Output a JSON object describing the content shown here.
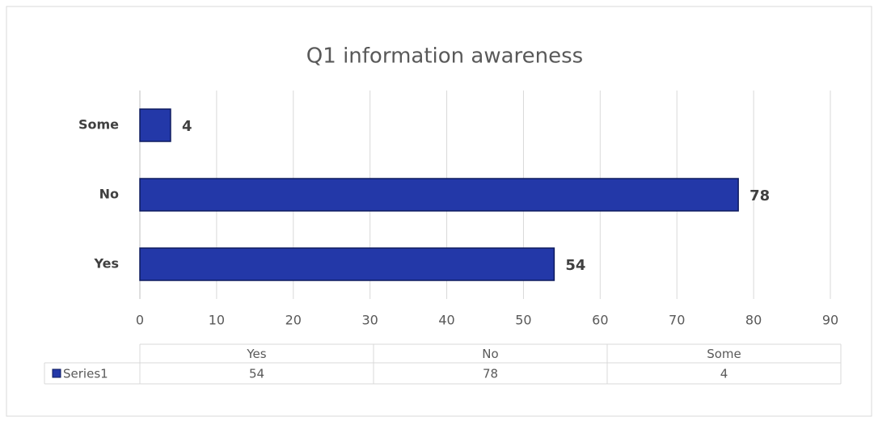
{
  "chart_data": {
    "type": "bar",
    "orientation": "horizontal",
    "title": "Q1 information awareness",
    "categories": [
      "Yes",
      "No",
      "Some"
    ],
    "series": [
      {
        "name": "Series1",
        "color": "#2338a8",
        "values": [
          54,
          78,
          4
        ]
      }
    ],
    "xlim": [
      0,
      90
    ],
    "xticks": [
      0,
      10,
      20,
      30,
      40,
      50,
      60,
      70,
      80,
      90
    ],
    "grid": true
  }
}
